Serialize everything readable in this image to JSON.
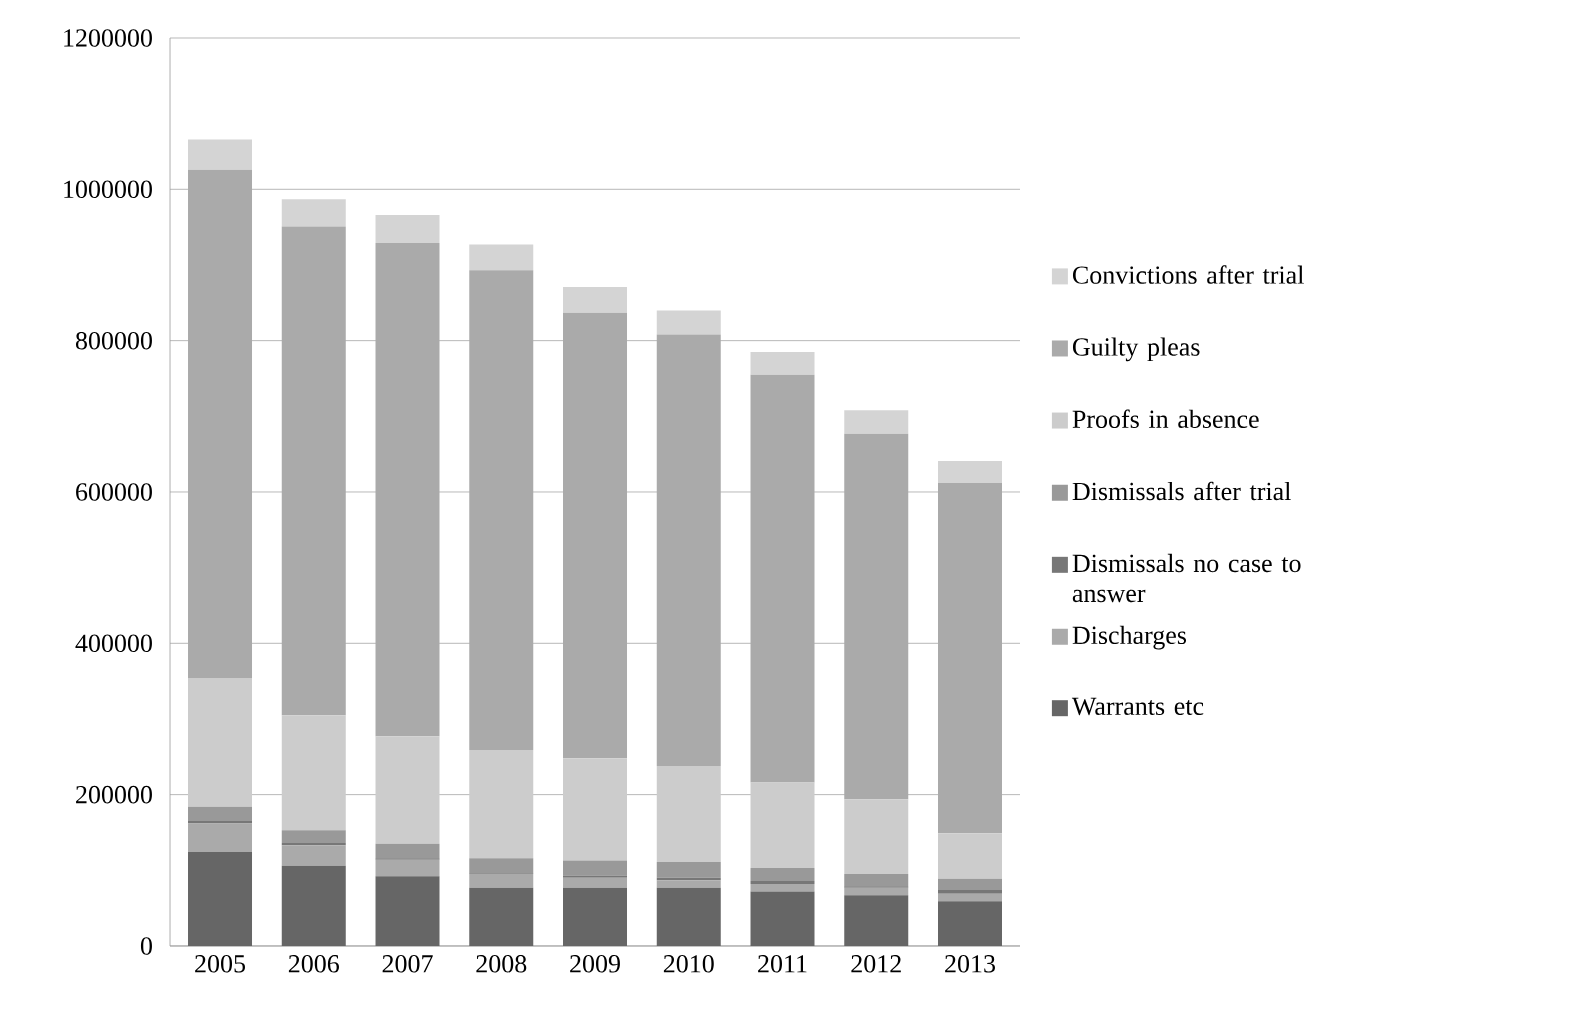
{
  "chart_data": {
    "type": "bar",
    "stacked": true,
    "categories": [
      "2005",
      "2006",
      "2007",
      "2008",
      "2009",
      "2010",
      "2011",
      "2012",
      "2013"
    ],
    "series": [
      {
        "name": "Warrants etc",
        "color": "#666666",
        "values": [
          125000,
          106000,
          92000,
          77000,
          77000,
          77000,
          72000,
          67000,
          59000
        ]
      },
      {
        "name": "Discharges",
        "color": "#aaaaaa",
        "values": [
          37000,
          27000,
          22000,
          18000,
          13000,
          10000,
          10000,
          10000,
          10000
        ]
      },
      {
        "name": "Dismissals no case to answer",
        "color": "#777777",
        "values": [
          3000,
          3000,
          2000,
          1000,
          3000,
          3000,
          4000,
          2000,
          5000
        ]
      },
      {
        "name": "Dismissals after trial",
        "color": "#999999",
        "values": [
          19000,
          17000,
          19000,
          20000,
          20000,
          21000,
          17000,
          16000,
          15000
        ]
      },
      {
        "name": "Proofs in absence",
        "color": "#cccccc",
        "values": [
          170000,
          152000,
          142000,
          143000,
          135000,
          127000,
          113000,
          99000,
          60000
        ]
      },
      {
        "name": "Guilty pleas",
        "color": "#aaaaaa",
        "values": [
          672000,
          646000,
          652000,
          634000,
          589000,
          570000,
          539000,
          483000,
          463000
        ]
      },
      {
        "name": "Convictions after trial",
        "color": "#d4d4d4",
        "values": [
          40000,
          36000,
          37000,
          34000,
          34000,
          32000,
          30000,
          31000,
          29000
        ]
      }
    ],
    "ylim": [
      0,
      1200000
    ],
    "yticks": [
      0,
      200000,
      400000,
      600000,
      800000,
      1000000,
      1200000
    ],
    "grid": "y",
    "legend": "right"
  }
}
